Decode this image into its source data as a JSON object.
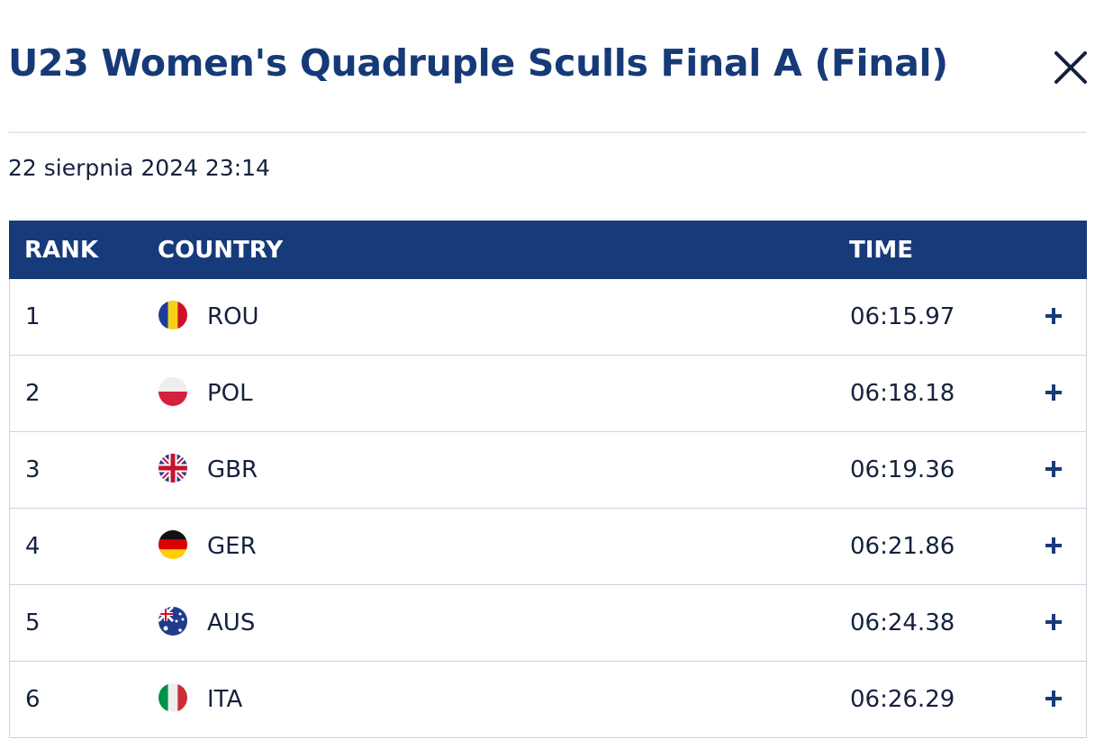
{
  "header": {
    "title": "U23 Women's Quadruple Sculls Final A (Final)",
    "date": "22 sierpnia 2024 23:14"
  },
  "table": {
    "columns": [
      "RANK",
      "COUNTRY",
      "TIME"
    ],
    "rows": [
      [
        1,
        "ROU",
        "06:15.97"
      ],
      [
        2,
        "POL",
        "06:18.18"
      ],
      [
        3,
        "GBR",
        "06:19.36"
      ],
      [
        4,
        "GER",
        "06:21.86"
      ],
      [
        5,
        "AUS",
        "06:24.38"
      ],
      [
        6,
        "ITA",
        "06:26.29"
      ]
    ]
  }
}
